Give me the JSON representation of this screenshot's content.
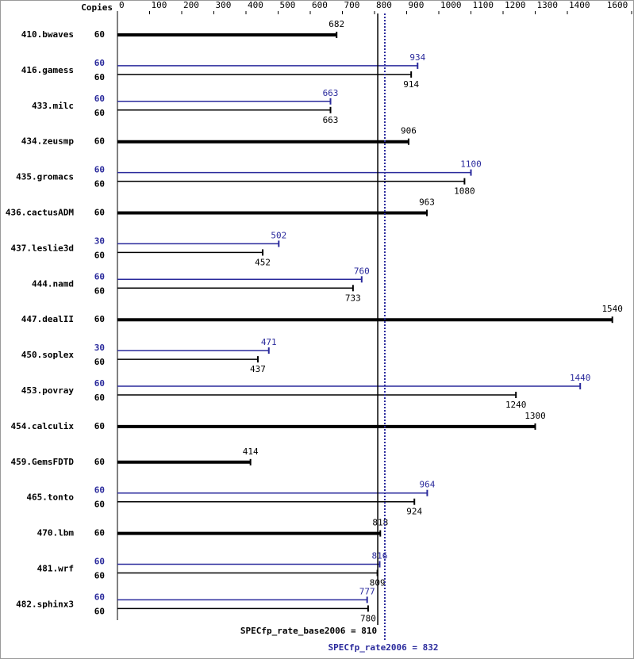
{
  "chart_data": {
    "type": "bar",
    "orientation": "horizontal",
    "copies_label": "Copies",
    "categories": [
      "410.bwaves",
      "416.gamess",
      "433.milc",
      "434.zeusmp",
      "435.gromacs",
      "436.cactusADM",
      "437.leslie3d",
      "444.namd",
      "447.dealII",
      "450.soplex",
      "453.povray",
      "454.calculix",
      "459.GemsFDTD",
      "465.tonto",
      "470.lbm",
      "481.wrf",
      "482.sphinx3"
    ],
    "series": [
      {
        "color": "#2a2a9c",
        "values": [
          null,
          934,
          663,
          null,
          1100,
          null,
          502,
          760,
          null,
          471,
          1440,
          null,
          null,
          964,
          null,
          816,
          777
        ],
        "copies": [
          null,
          60,
          60,
          null,
          60,
          null,
          30,
          60,
          null,
          30,
          60,
          null,
          null,
          60,
          null,
          60,
          60
        ]
      },
      {
        "color": "#000000",
        "values": [
          682,
          914,
          663,
          906,
          1080,
          963,
          452,
          733,
          1540,
          437,
          1240,
          1300,
          414,
          924,
          818,
          809,
          780
        ],
        "copies": [
          60,
          60,
          60,
          60,
          60,
          60,
          60,
          60,
          60,
          60,
          60,
          60,
          60,
          60,
          60,
          60,
          60
        ]
      }
    ],
    "xlim": [
      0,
      1600
    ],
    "xticks": [
      0,
      100,
      200,
      300,
      400,
      500,
      600,
      700,
      800,
      900,
      1000,
      1100,
      1200,
      1300,
      1400,
      1600
    ],
    "reference_lines": [
      {
        "label": "SPECfp_rate_base2006 = 810",
        "value": 810,
        "color": "#000000",
        "style": "solid"
      },
      {
        "label": "SPECfp_rate2006 = 832",
        "value": 832,
        "color": "#2a2a9c",
        "style": "dotted"
      }
    ]
  }
}
